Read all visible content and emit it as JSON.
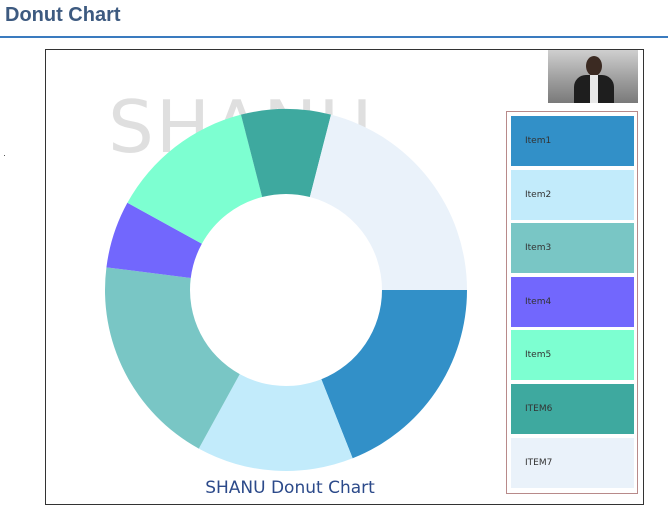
{
  "page": {
    "title": "Donut Chart"
  },
  "chart_data": {
    "type": "donut",
    "title": "SHANU Donut Chart",
    "watermark": "SHANU",
    "categories": [
      "Item1",
      "Item2",
      "Item3",
      "Item4",
      "Item5",
      "ITEM6",
      "ITEM7"
    ],
    "values": [
      19,
      14,
      19,
      6,
      13,
      8,
      21
    ],
    "colors": [
      "#3290c8",
      "#c2ebfb",
      "#79c6c5",
      "#7267fd",
      "#7dffd1",
      "#3ea99f",
      "#eaf2fa"
    ],
    "start_angle_deg": 0,
    "direction": "clockwise",
    "legend": "right"
  }
}
